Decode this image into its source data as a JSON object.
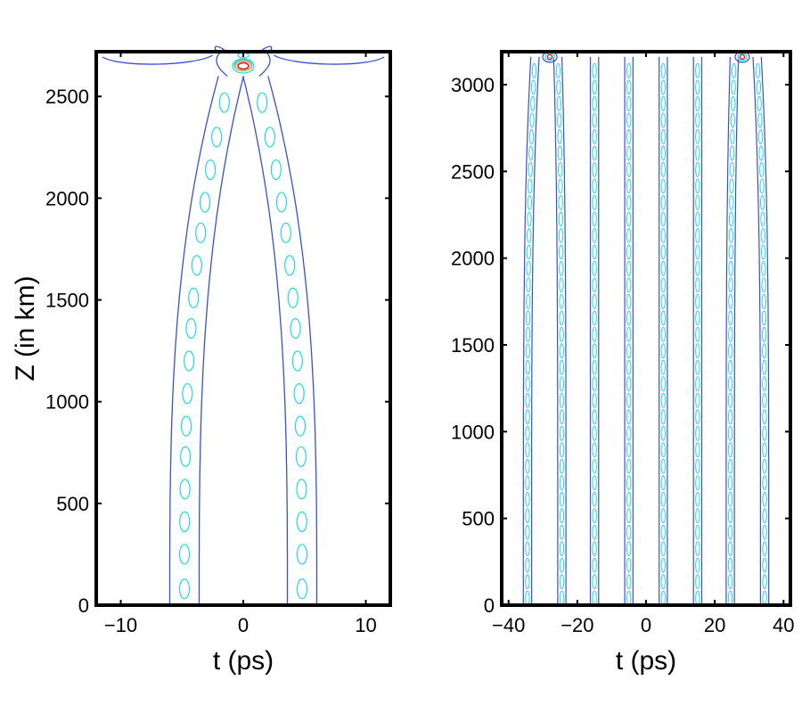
{
  "chart_data": [
    {
      "type": "contour",
      "panel": "left",
      "xlabel": "t (ps)",
      "ylabel": "Z (in km)",
      "xlim": [
        -12,
        12
      ],
      "ylim": [
        0,
        2720
      ],
      "xticks": [
        -10,
        0,
        10
      ],
      "xtick_labels": [
        "−10",
        "0",
        "10"
      ],
      "yticks": [
        0,
        500,
        1000,
        1500,
        2000,
        2500
      ],
      "ytick_labels": [
        "0",
        "500",
        "1000",
        "1500",
        "2000",
        "2500"
      ],
      "grid": false,
      "colors": {
        "outer_contour": "#3a4fd0",
        "inner_contour": "#20d8e8",
        "peak_outer": "#e0a030",
        "peak_inner": "#d02020"
      },
      "channels": [
        {
          "center_t": -4.8,
          "half_width": 1.2,
          "direction": -1,
          "blob_z": [
            80,
            250,
            410,
            570,
            730,
            880,
            1040,
            1200,
            1360,
            1510,
            1670,
            1830,
            1980,
            2140,
            2300,
            2470
          ]
        },
        {
          "center_t": 4.8,
          "half_width": 1.2,
          "direction": 1,
          "blob_z": [
            80,
            250,
            410,
            570,
            730,
            880,
            1040,
            1200,
            1360,
            1510,
            1670,
            1830,
            1980,
            2140,
            2300,
            2470
          ]
        }
      ],
      "merge_z": 2600,
      "peak": {
        "t": 0,
        "z": 2650
      }
    },
    {
      "type": "contour",
      "panel": "right",
      "xlabel": "t (ps)",
      "ylabel": "",
      "xlim": [
        -42,
        42
      ],
      "ylim": [
        0,
        3190
      ],
      "xticks": [
        -40,
        -20,
        0,
        20,
        40
      ],
      "xtick_labels": [
        "−40",
        "−20",
        "0",
        "20",
        "40"
      ],
      "yticks": [
        0,
        500,
        1000,
        1500,
        2000,
        2500,
        3000
      ],
      "ytick_labels": [
        "0",
        "500",
        "1000",
        "1500",
        "2000",
        "2500",
        "3000"
      ],
      "grid": false,
      "channels": [
        {
          "center_t": -34.5,
          "half_width": 1.2,
          "bend_toward": -28
        },
        {
          "center_t": -24.5,
          "half_width": 1.2,
          "bend_toward": -28
        },
        {
          "center_t": -15,
          "half_width": 1.2
        },
        {
          "center_t": -5,
          "half_width": 1.2
        },
        {
          "center_t": 5,
          "half_width": 1.2
        },
        {
          "center_t": 15,
          "half_width": 1.2
        },
        {
          "center_t": 24.5,
          "half_width": 1.2,
          "bend_toward": 28
        },
        {
          "center_t": 34.5,
          "half_width": 1.2,
          "bend_toward": 28
        }
      ],
      "peaks": [
        {
          "t": -28,
          "z": 3160
        },
        {
          "t": 28,
          "z": 3160
        }
      ]
    }
  ]
}
